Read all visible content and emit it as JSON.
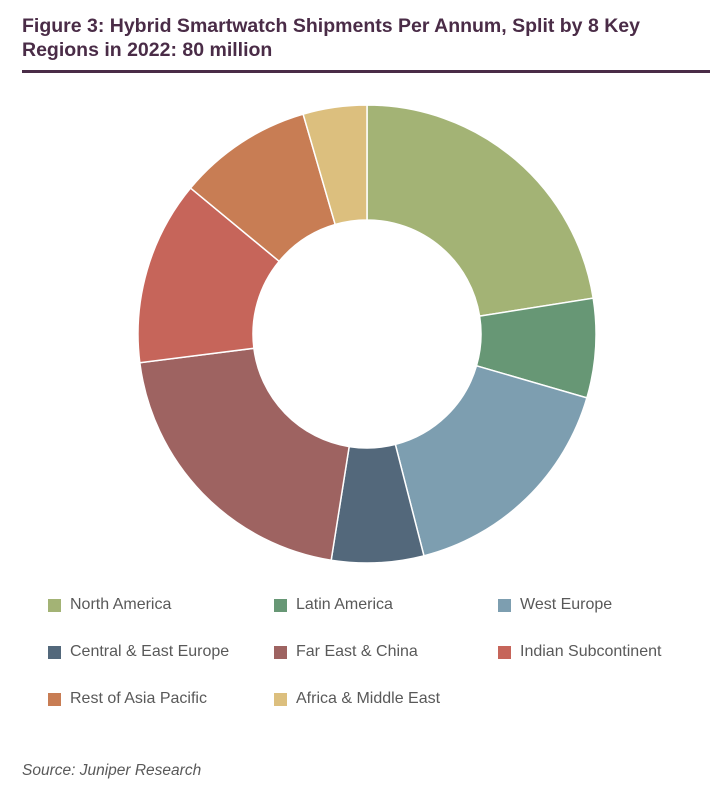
{
  "title": "Figure 3: Hybrid Smartwatch Shipments Per Annum, Split by 8 Key Regions in 2022: 80 million",
  "source": "Source: Juniper Research",
  "chart_data": {
    "type": "pie",
    "donut": true,
    "title": "Figure 3: Hybrid Smartwatch Shipments Per Annum, Split by 8 Key Regions in 2022: 80 million",
    "legend_position": "bottom",
    "categories": [
      "North America",
      "Latin America",
      "West Europe",
      "Central & East Europe",
      "Far East & China",
      "Indian Subcontinent",
      "Rest of Asia Pacific",
      "Africa & Middle East"
    ],
    "values": [
      22.5,
      7.0,
      16.5,
      6.5,
      20.5,
      13.0,
      9.5,
      4.5
    ],
    "colors": [
      "#a3b375",
      "#679775",
      "#7d9eb0",
      "#53687b",
      "#9e6361",
      "#c6655a",
      "#c87d54",
      "#dcbf7e"
    ]
  }
}
